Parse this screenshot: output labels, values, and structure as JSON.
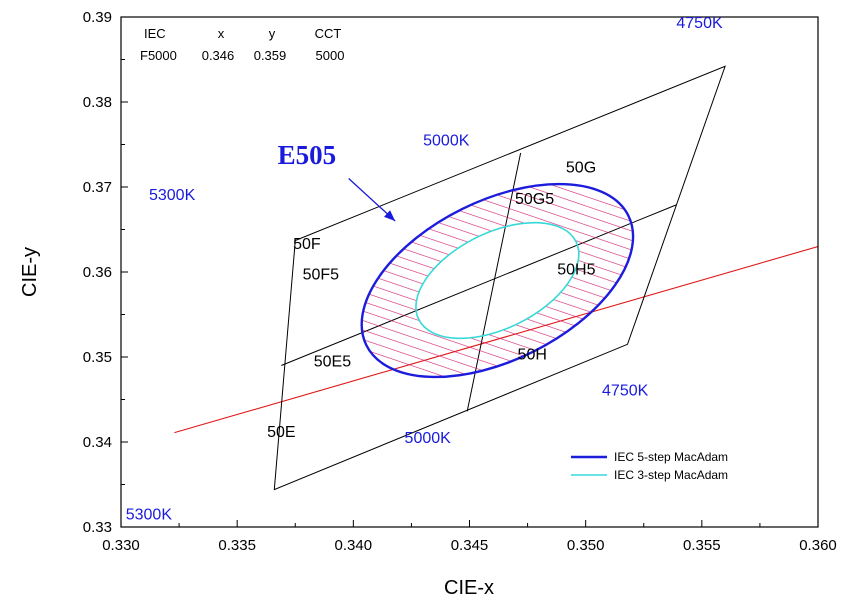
{
  "chart_data": {
    "type": "chromaticity-diagram",
    "xlabel": "CIE-x",
    "ylabel": "CIE-y",
    "xlim": [
      0.33,
      0.36
    ],
    "ylim": [
      0.33,
      0.39
    ],
    "xticks": [
      "0.330",
      "0.335",
      "0.340",
      "0.345",
      "0.350",
      "0.355",
      "0.360"
    ],
    "yticks": [
      "0.33",
      "0.34",
      "0.35",
      "0.36",
      "0.37",
      "0.38",
      "0.39"
    ],
    "info_table": {
      "headers": [
        "IEC",
        "x",
        "y",
        "CCT"
      ],
      "row": [
        "F5000",
        "0.346",
        "0.359",
        "5000"
      ]
    },
    "quadrangle": {
      "corners": [
        [
          0.3366,
          0.3344
        ],
        [
          0.3375,
          0.3637
        ],
        [
          0.356,
          0.3842
        ],
        [
          0.3518,
          0.3515
        ]
      ],
      "dividers": [
        [
          [
            0.3449,
            0.3436
          ],
          [
            0.3472,
            0.374
          ]
        ],
        [
          [
            0.3369,
            0.349
          ],
          [
            0.3539,
            0.3679
          ]
        ]
      ]
    },
    "planckian_line": [
      [
        0.3323,
        0.3411
      ],
      [
        0.36,
        0.363
      ]
    ],
    "ellipse_5step": {
      "center": [
        0.3462,
        0.359
      ],
      "semi_axes": [
        0.00948,
        0.00412
      ],
      "rotation_deg": 53.5,
      "color": "#1c1cdc",
      "hatch_color": "#d21e6e"
    },
    "ellipse_3step": {
      "center": [
        0.3462,
        0.359
      ],
      "semi_axes": [
        0.00569,
        0.00247
      ],
      "rotation_deg": 53.5,
      "color": "#36d8d8"
    },
    "bin_labels": [
      {
        "text": "50F",
        "x": 0.338,
        "y": 0.3627
      },
      {
        "text": "50G",
        "x": 0.3498,
        "y": 0.3717
      },
      {
        "text": "50G5",
        "x": 0.3478,
        "y": 0.368
      },
      {
        "text": "50F5",
        "x": 0.3386,
        "y": 0.3591
      },
      {
        "text": "50H5",
        "x": 0.3496,
        "y": 0.3597
      },
      {
        "text": "50E5",
        "x": 0.3391,
        "y": 0.3489
      },
      {
        "text": "50H",
        "x": 0.3477,
        "y": 0.3497
      },
      {
        "text": "50E",
        "x": 0.3369,
        "y": 0.3406
      }
    ],
    "cct_labels": [
      {
        "text": "4750K",
        "x": 0.3549,
        "y": 0.3887
      },
      {
        "text": "5000K",
        "x": 0.344,
        "y": 0.3749
      },
      {
        "text": "5300K",
        "x": 0.3322,
        "y": 0.3685
      },
      {
        "text": "4750K",
        "x": 0.3517,
        "y": 0.3455
      },
      {
        "text": "5000K",
        "x": 0.3432,
        "y": 0.3399
      },
      {
        "text": "5300K",
        "x": 0.3312,
        "y": 0.3309
      }
    ],
    "callout": {
      "text": "E505",
      "x": 0.338,
      "y": 0.3727,
      "arrow_from": [
        0.3398,
        0.371
      ],
      "arrow_to": [
        0.3418,
        0.366
      ]
    },
    "legend": {
      "position": "bottom-right",
      "entries": [
        {
          "name": "IEC 5-step MacAdam",
          "color": "#1c1cdc"
        },
        {
          "name": "IEC 3-step MacAdam",
          "color": "#36d8d8"
        }
      ]
    }
  }
}
